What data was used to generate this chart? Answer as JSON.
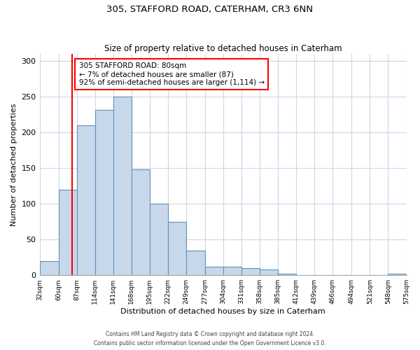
{
  "title1": "305, STAFFORD ROAD, CATERHAM, CR3 6NN",
  "title2": "Size of property relative to detached houses in Caterham",
  "xlabel": "Distribution of detached houses by size in Caterham",
  "ylabel": "Number of detached properties",
  "bin_edges": [
    32,
    60,
    87,
    114,
    141,
    168,
    195,
    222,
    249,
    277,
    304,
    331,
    358,
    385,
    412,
    439,
    466,
    494,
    521,
    548,
    575
  ],
  "bin_labels": [
    "32sqm",
    "60sqm",
    "87sqm",
    "114sqm",
    "141sqm",
    "168sqm",
    "195sqm",
    "222sqm",
    "249sqm",
    "277sqm",
    "304sqm",
    "331sqm",
    "358sqm",
    "385sqm",
    "412sqm",
    "439sqm",
    "466sqm",
    "494sqm",
    "521sqm",
    "548sqm",
    "575sqm"
  ],
  "counts": [
    20,
    120,
    210,
    232,
    250,
    148,
    100,
    75,
    35,
    12,
    12,
    10,
    8,
    2,
    0,
    0,
    0,
    0,
    0,
    2
  ],
  "bar_color": "#c8d8eb",
  "bar_edge_color": "#6090b8",
  "property_line_x": 80,
  "property_line_color": "red",
  "annotation_line1": "305 STAFFORD ROAD: 80sqm",
  "annotation_line2": "← 7% of detached houses are smaller (87)",
  "annotation_line3": "92% of semi-detached houses are larger (1,114) →",
  "annotation_box_color": "white",
  "annotation_box_edge": "red",
  "ylim": [
    0,
    310
  ],
  "yticks": [
    0,
    50,
    100,
    150,
    200,
    250,
    300
  ],
  "grid_color": "#c8d8e8",
  "footnote1": "Contains HM Land Registry data © Crown copyright and database right 2024.",
  "footnote2": "Contains public sector information licensed under the Open Government Licence v3.0."
}
